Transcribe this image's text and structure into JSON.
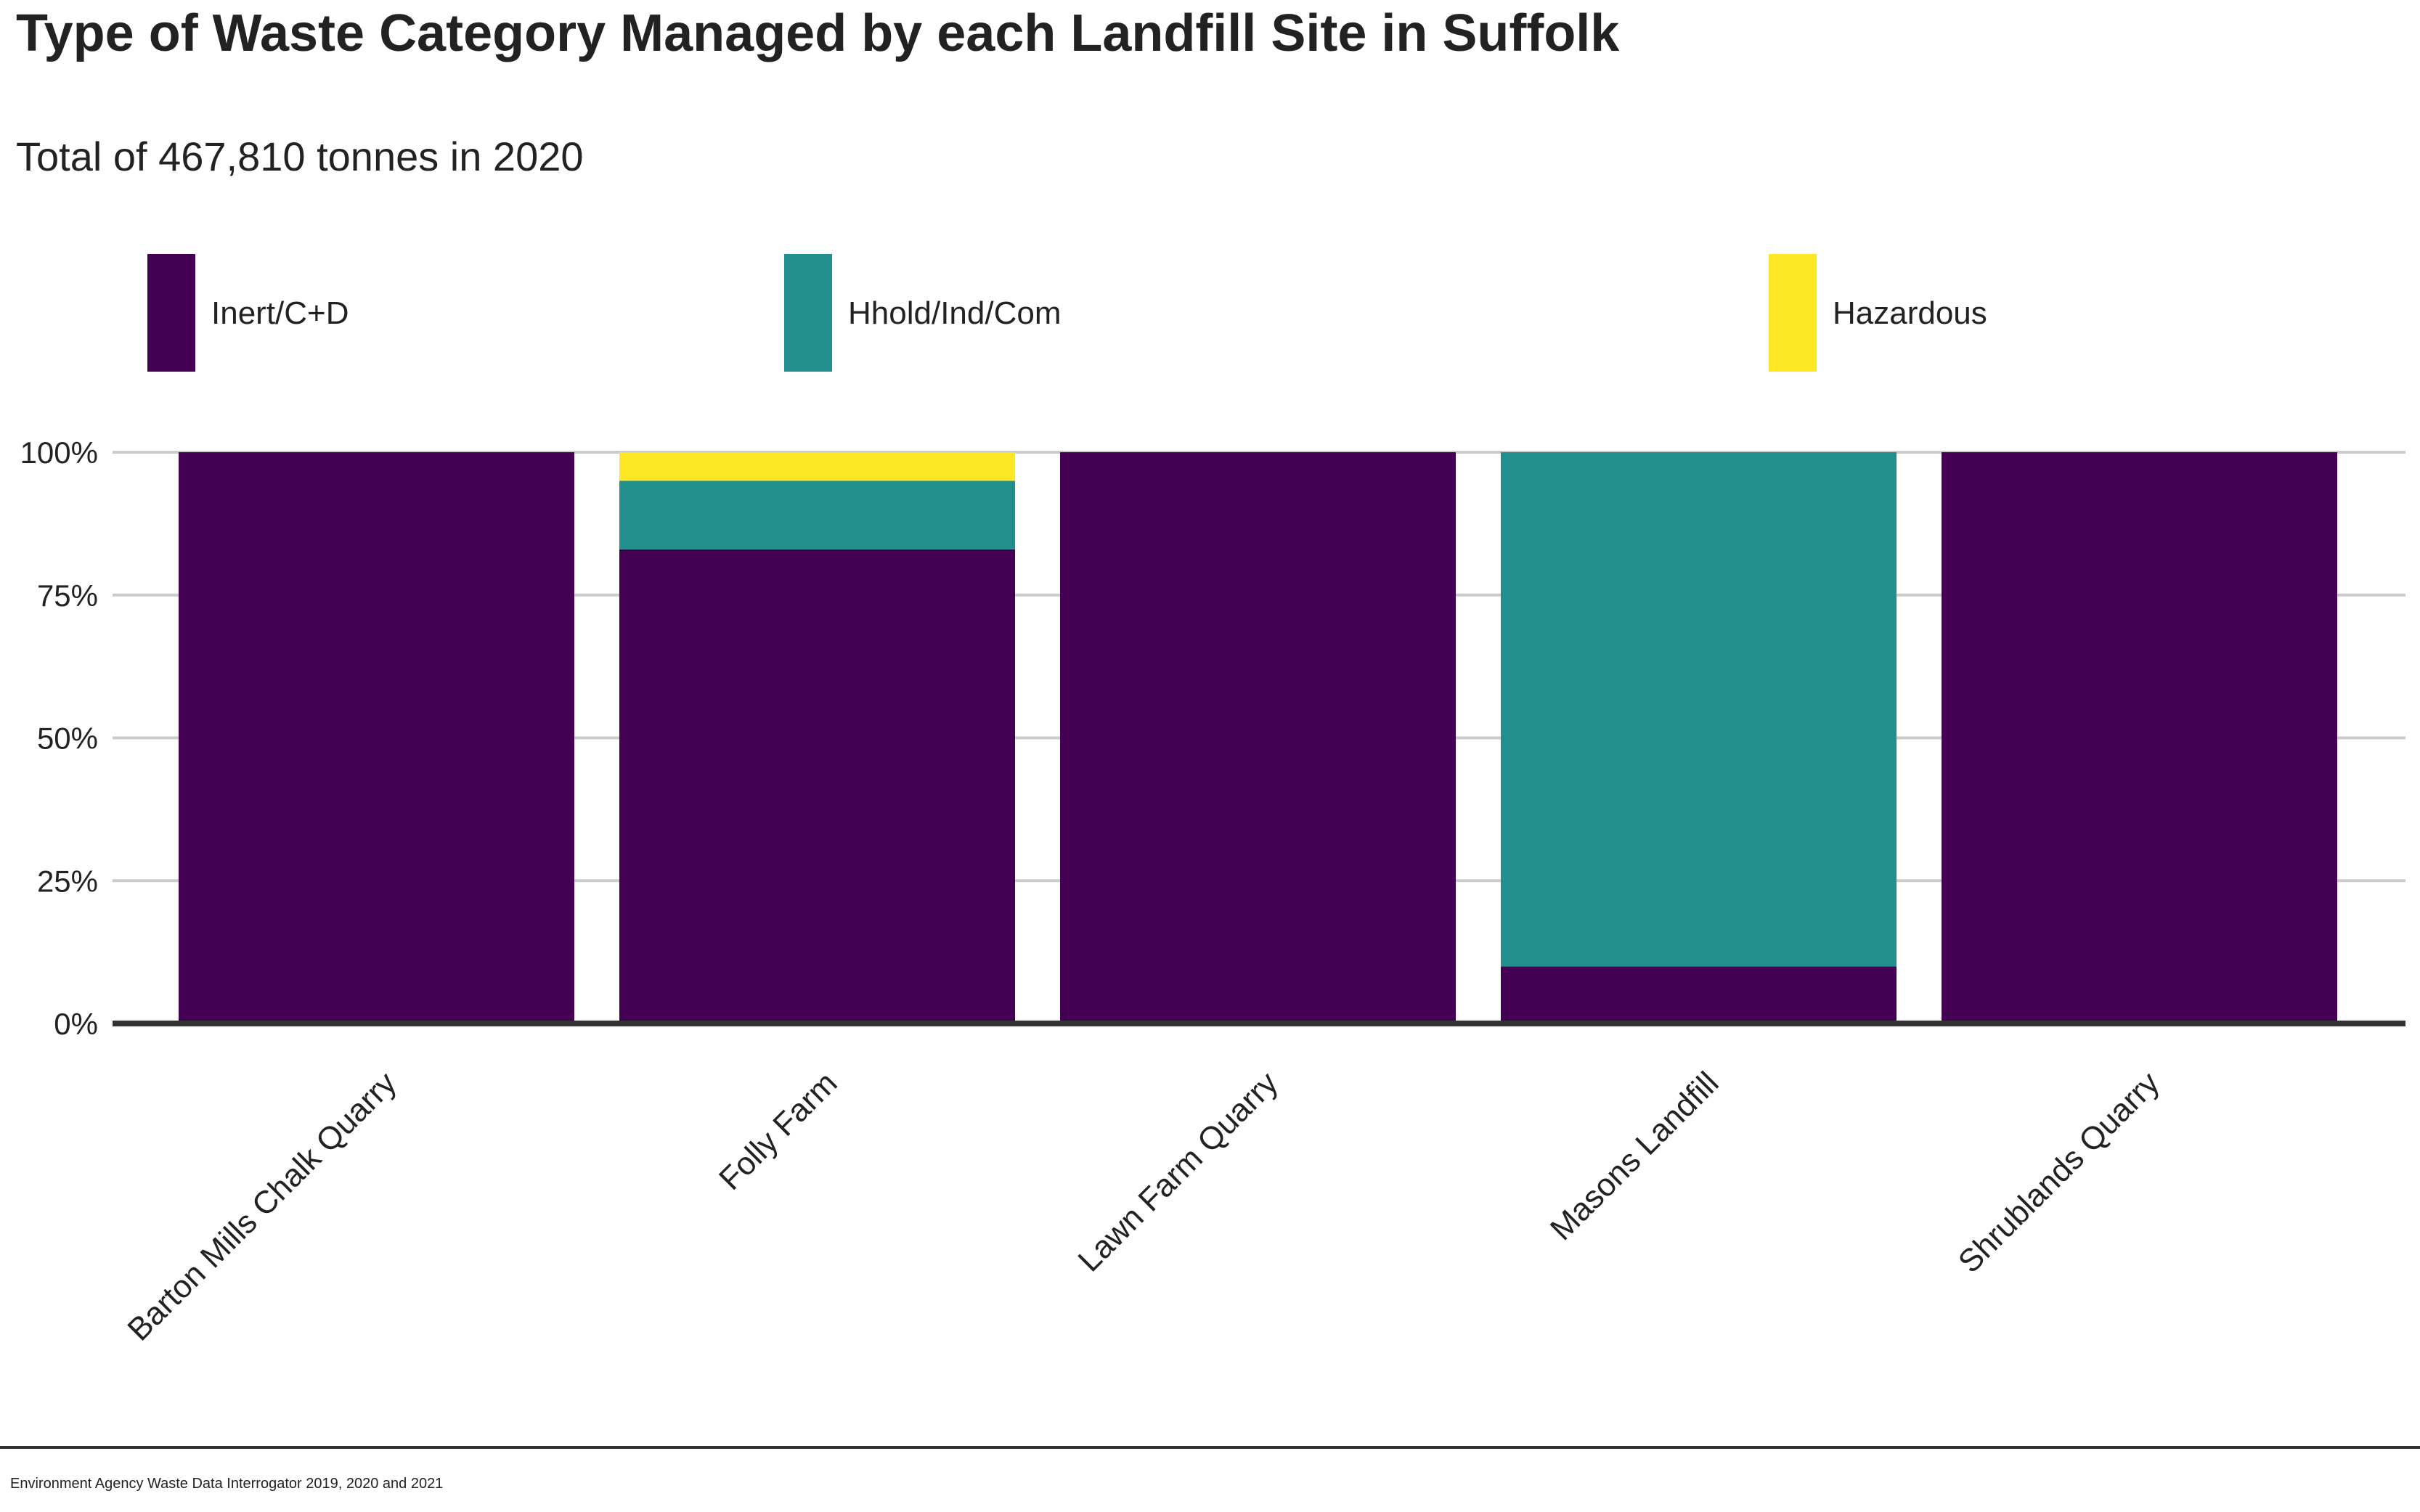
{
  "chart_data": {
    "type": "bar",
    "stacked": true,
    "title": "Type of Waste Category Managed by each Landfill Site in Suffolk",
    "subtitle": "Total of 467,810 tonnes in 2020",
    "categories": [
      "Barton Mills Chalk Quarry",
      "Folly Farm",
      "Lawn Farm Quarry",
      "Masons Landfill",
      "Shrublands Quarry"
    ],
    "series": [
      {
        "name": "Inert/C+D",
        "color": "#440154",
        "values": [
          100,
          83,
          100,
          10,
          100
        ]
      },
      {
        "name": "Hhold/Ind/Com",
        "color": "#21908C",
        "values": [
          0,
          12,
          0,
          90,
          0
        ]
      },
      {
        "name": "Hazardous",
        "color": "#FDE725",
        "values": [
          0,
          5,
          0,
          0,
          0
        ]
      }
    ],
    "yticks": [
      "0%",
      "25%",
      "50%",
      "75%",
      "100%"
    ],
    "ylim": [
      0,
      100
    ],
    "grid": true,
    "legend_position": "top",
    "source": "Environment Agency Waste Data Interrogator 2019, 2020 and 2021"
  }
}
